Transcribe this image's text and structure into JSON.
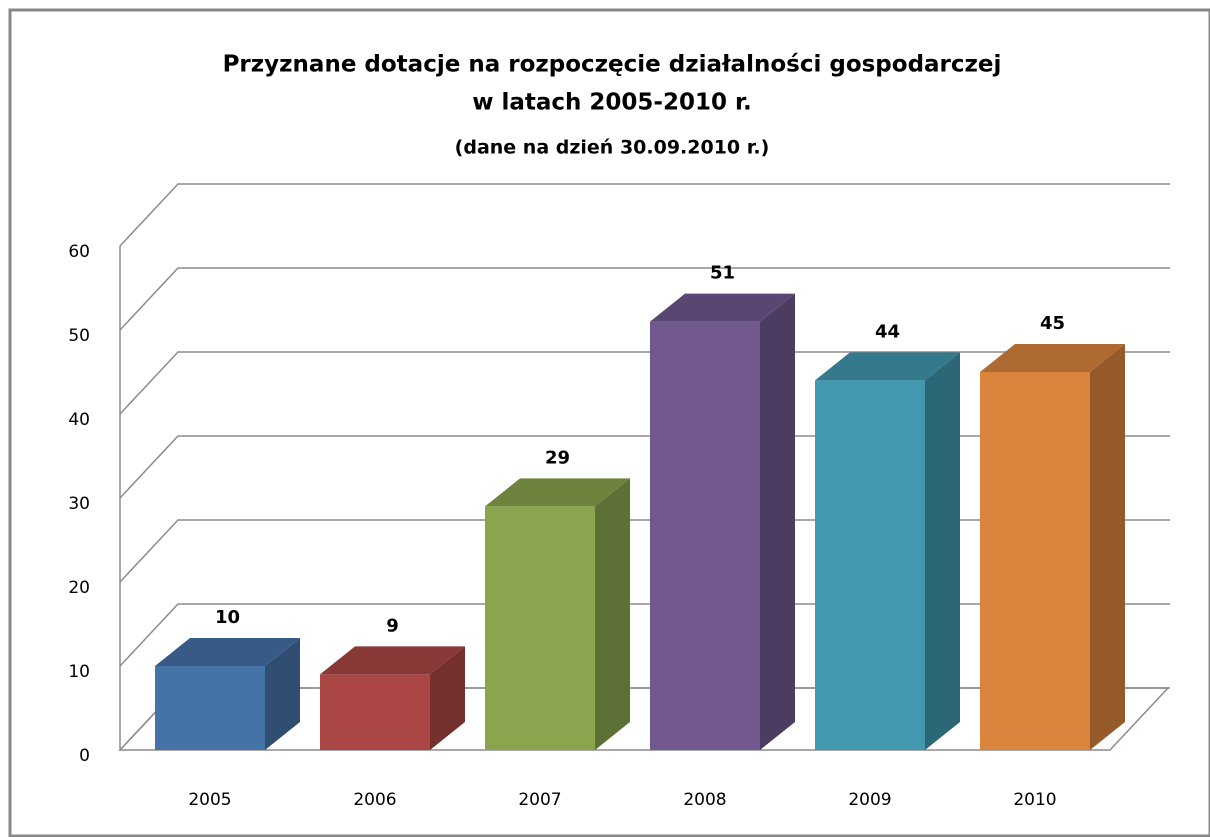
{
  "chart_data": {
    "type": "bar3d",
    "title": [
      "Przyznane dotacje na rozpoczęcie działalności gospodarczej",
      "w latach 2005-2010 r."
    ],
    "subtitle": "(dane na dzień 30.09.2010 r.)",
    "categories": [
      "2005",
      "2006",
      "2007",
      "2008",
      "2009",
      "2010"
    ],
    "values": [
      10,
      9,
      29,
      51,
      44,
      45
    ],
    "colors": [
      "#4572a7",
      "#aa4643",
      "#89a54e",
      "#71588f",
      "#4198af",
      "#db843d"
    ],
    "ylim": [
      0,
      60
    ],
    "yticks": [
      0,
      10,
      20,
      30,
      40,
      50,
      60
    ],
    "grid": true
  }
}
